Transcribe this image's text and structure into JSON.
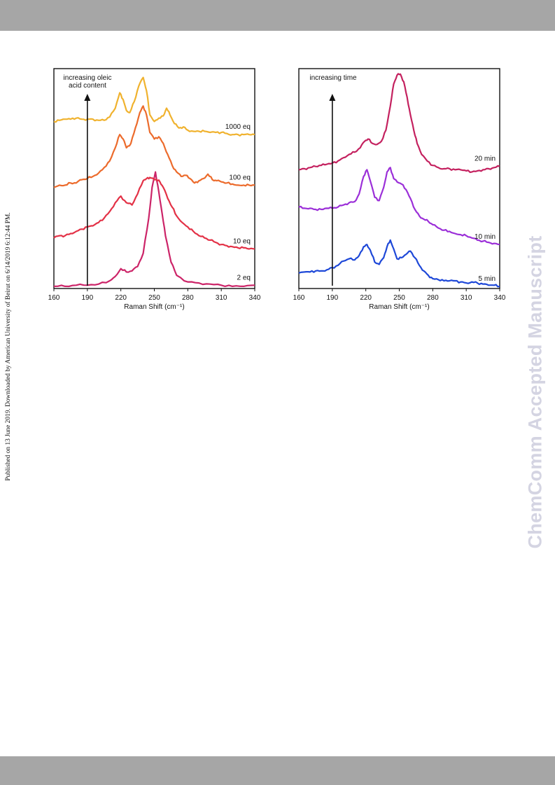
{
  "page": {
    "side_note": "Published on 13 June 2019. Downloaded by American University of Beirut on 6/14/2019 6:12:44 PM.",
    "watermark": "ChemComm Accepted Manuscript"
  },
  "chart_data": [
    {
      "type": "line",
      "xlabel": "Raman Shift (cm⁻¹)",
      "xlim": [
        160,
        340
      ],
      "xticks": [
        160,
        190,
        220,
        250,
        280,
        310,
        340
      ],
      "ylim": [
        0,
        10
      ],
      "y_units": "arbitrary (stacked)",
      "grid": false,
      "arrow_label": [
        "increasing oleic",
        "acid content"
      ],
      "series": [
        {
          "name": "2 eq",
          "color": "#cc2468",
          "x": [
            160,
            170,
            180,
            190,
            200,
            210,
            215,
            220,
            225,
            230,
            235,
            240,
            245,
            248,
            251,
            254,
            257,
            260,
            265,
            270,
            280,
            290,
            300,
            310,
            320,
            330,
            340
          ],
          "y": [
            0.1,
            0.1,
            0.15,
            0.15,
            0.2,
            0.35,
            0.55,
            0.9,
            0.75,
            0.8,
            1.0,
            1.6,
            3.2,
            4.6,
            5.3,
            4.4,
            3.4,
            2.4,
            1.2,
            0.6,
            0.3,
            0.25,
            0.2,
            0.15,
            0.1,
            0.1,
            0.15
          ]
        },
        {
          "name": "10 eq",
          "color": "#e33146",
          "x": [
            160,
            165,
            170,
            175,
            180,
            185,
            190,
            195,
            200,
            205,
            210,
            215,
            220,
            225,
            230,
            235,
            240,
            243,
            246,
            249,
            252,
            255,
            258,
            262,
            266,
            270,
            275,
            280,
            285,
            290,
            295,
            300,
            305,
            310,
            315,
            320,
            325,
            330,
            335,
            340
          ],
          "y": [
            2.3,
            2.4,
            2.4,
            2.5,
            2.6,
            2.7,
            2.8,
            2.85,
            3.0,
            3.2,
            3.5,
            3.9,
            4.2,
            3.9,
            3.8,
            4.3,
            4.9,
            5.0,
            5.05,
            5.0,
            4.95,
            4.85,
            4.6,
            4.1,
            3.7,
            3.3,
            3.0,
            2.8,
            2.6,
            2.4,
            2.3,
            2.2,
            2.1,
            2.0,
            1.95,
            1.9,
            1.85,
            1.85,
            1.8,
            1.8
          ]
        },
        {
          "name": "100 eq",
          "color": "#ec6b2c",
          "x": [
            160,
            165,
            170,
            175,
            180,
            185,
            190,
            195,
            200,
            205,
            210,
            215,
            219,
            222,
            225,
            229,
            233,
            237,
            240,
            243,
            246,
            250,
            254,
            258,
            262,
            266,
            270,
            274,
            278,
            282,
            286,
            290,
            294,
            298,
            302,
            306,
            310,
            315,
            320,
            325,
            330,
            335,
            340
          ],
          "y": [
            4.6,
            4.7,
            4.7,
            4.8,
            4.8,
            4.95,
            5.0,
            5.1,
            5.25,
            5.5,
            5.8,
            6.4,
            7.0,
            6.8,
            6.4,
            6.6,
            7.3,
            8.0,
            8.3,
            7.9,
            7.1,
            6.8,
            6.9,
            6.6,
            6.1,
            5.6,
            5.3,
            5.1,
            5.15,
            5.0,
            4.8,
            4.9,
            5.0,
            5.2,
            4.95,
            4.9,
            4.85,
            4.8,
            4.75,
            4.7,
            4.7,
            4.7,
            4.7
          ]
        },
        {
          "name": "1000 eq",
          "color": "#f0b22e",
          "x": [
            160,
            165,
            170,
            175,
            180,
            185,
            190,
            195,
            200,
            205,
            210,
            215,
            219,
            222,
            225,
            228,
            232,
            236,
            240,
            243,
            246,
            250,
            254,
            258,
            261,
            264,
            268,
            272,
            276,
            280,
            285,
            290,
            295,
            300,
            305,
            310,
            315,
            320,
            325,
            330,
            335,
            340
          ],
          "y": [
            7.6,
            7.65,
            7.7,
            7.7,
            7.75,
            7.7,
            7.7,
            7.7,
            7.65,
            7.65,
            7.8,
            8.2,
            8.9,
            8.6,
            8.1,
            8.0,
            8.5,
            9.2,
            9.6,
            9.0,
            7.9,
            7.6,
            7.75,
            7.85,
            8.2,
            7.9,
            7.5,
            7.3,
            7.35,
            7.2,
            7.15,
            7.15,
            7.15,
            7.1,
            7.1,
            7.1,
            7.05,
            7.0,
            7.0,
            7.0,
            7.0,
            7.0
          ]
        }
      ]
    },
    {
      "type": "line",
      "xlabel": "Raman Shift (cm⁻¹)",
      "xlim": [
        160,
        340
      ],
      "xticks": [
        160,
        190,
        220,
        250,
        280,
        310,
        340
      ],
      "ylim": [
        0,
        10
      ],
      "y_units": "arbitrary (stacked)",
      "grid": false,
      "arrow_label": [
        "increasing time"
      ],
      "series": [
        {
          "name": "5 min",
          "color": "#1e48d8",
          "x": [
            160,
            165,
            170,
            175,
            180,
            185,
            190,
            195,
            200,
            205,
            210,
            214,
            218,
            221,
            224,
            228,
            232,
            236,
            239,
            242,
            245,
            248,
            252,
            256,
            260,
            264,
            268,
            272,
            276,
            280,
            285,
            290,
            295,
            300,
            305,
            310,
            315,
            320,
            325,
            330,
            335,
            340
          ],
          "y": [
            0.7,
            0.75,
            0.75,
            0.8,
            0.8,
            0.85,
            0.95,
            1.05,
            1.25,
            1.35,
            1.3,
            1.5,
            1.9,
            2.0,
            1.75,
            1.2,
            1.1,
            1.4,
            1.9,
            2.2,
            1.8,
            1.35,
            1.4,
            1.55,
            1.7,
            1.4,
            1.05,
            0.8,
            0.6,
            0.45,
            0.4,
            0.35,
            0.35,
            0.35,
            0.3,
            0.25,
            0.3,
            0.25,
            0.2,
            0.15,
            0.15,
            0.1
          ]
        },
        {
          "name": "10 min",
          "color": "#9b2fd8",
          "x": [
            160,
            165,
            170,
            175,
            180,
            185,
            190,
            195,
            200,
            205,
            210,
            214,
            218,
            221,
            224,
            228,
            232,
            236,
            239,
            242,
            245,
            248,
            252,
            256,
            260,
            264,
            268,
            272,
            276,
            280,
            285,
            290,
            295,
            300,
            305,
            310,
            315,
            320,
            325,
            330,
            335,
            340
          ],
          "y": [
            3.7,
            3.65,
            3.65,
            3.6,
            3.6,
            3.65,
            3.65,
            3.7,
            3.8,
            3.9,
            3.95,
            4.3,
            5.1,
            5.4,
            4.9,
            4.15,
            4.0,
            4.6,
            5.3,
            5.5,
            5.0,
            4.85,
            4.75,
            4.5,
            4.1,
            3.6,
            3.3,
            3.15,
            3.05,
            2.9,
            2.75,
            2.65,
            2.6,
            2.5,
            2.45,
            2.4,
            2.3,
            2.2,
            2.15,
            2.1,
            2.05,
            2.0
          ]
        },
        {
          "name": "20 min",
          "color": "#c4215f",
          "x": [
            160,
            165,
            170,
            175,
            180,
            185,
            190,
            195,
            200,
            205,
            210,
            215,
            219,
            222,
            226,
            230,
            234,
            238,
            242,
            245,
            248,
            251,
            254,
            257,
            260,
            263,
            266,
            270,
            275,
            280,
            285,
            290,
            295,
            300,
            305,
            310,
            315,
            320,
            325,
            330,
            335,
            340
          ],
          "y": [
            5.4,
            5.45,
            5.5,
            5.55,
            5.6,
            5.65,
            5.7,
            5.8,
            5.95,
            6.1,
            6.2,
            6.4,
            6.7,
            6.8,
            6.6,
            6.55,
            6.7,
            7.2,
            8.3,
            9.3,
            9.7,
            9.75,
            9.4,
            8.7,
            7.9,
            7.2,
            6.6,
            6.1,
            5.8,
            5.6,
            5.5,
            5.45,
            5.45,
            5.4,
            5.4,
            5.35,
            5.3,
            5.35,
            5.4,
            5.45,
            5.5,
            5.55
          ]
        }
      ]
    }
  ]
}
